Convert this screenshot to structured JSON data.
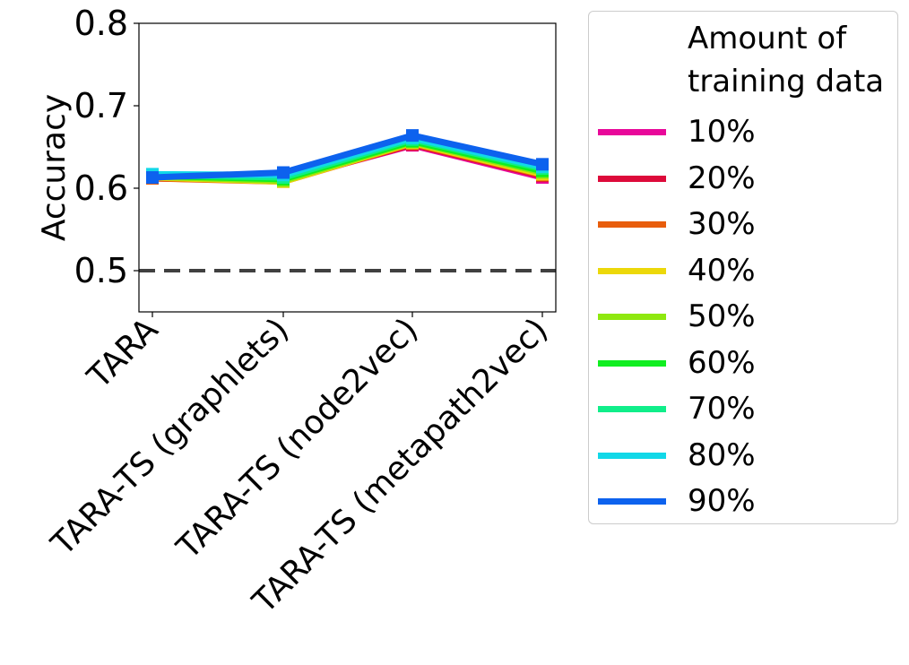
{
  "chart_data": {
    "type": "line",
    "categories": [
      "TARA",
      "TARA-TS (graphlets)",
      "TARA-TS (node2vec)",
      "TARA-TS (metapath2vec)"
    ],
    "ylabel": "Accuracy",
    "xlabel": "",
    "ylim": [
      0.45,
      0.8
    ],
    "yticks": [
      "0.5",
      "0.6",
      "0.7",
      "0.8"
    ],
    "baseline": 0.5,
    "legend_title": "Amount of training data",
    "legend_placement": "outside-right",
    "series": [
      {
        "name": "10%",
        "color": "#e8089a",
        "values": [
          0.612,
          0.61,
          0.652,
          0.613
        ]
      },
      {
        "name": "20%",
        "color": "#dd0a3a",
        "values": [
          0.612,
          0.609,
          0.653,
          0.615
        ]
      },
      {
        "name": "30%",
        "color": "#e85d0c",
        "values": [
          0.612,
          0.608,
          0.654,
          0.616
        ]
      },
      {
        "name": "40%",
        "color": "#ecd80a",
        "values": [
          0.613,
          0.608,
          0.655,
          0.617
        ]
      },
      {
        "name": "50%",
        "color": "#8ee80f",
        "values": [
          0.614,
          0.609,
          0.656,
          0.619
        ]
      },
      {
        "name": "60%",
        "color": "#10ee20",
        "values": [
          0.615,
          0.611,
          0.657,
          0.621
        ]
      },
      {
        "name": "70%",
        "color": "#10ee8a",
        "values": [
          0.616,
          0.613,
          0.659,
          0.624
        ]
      },
      {
        "name": "80%",
        "color": "#12d8e8",
        "values": [
          0.617,
          0.616,
          0.661,
          0.626
        ]
      },
      {
        "name": "90%",
        "color": "#0d62ee",
        "values": [
          0.613,
          0.619,
          0.664,
          0.629
        ]
      }
    ]
  }
}
